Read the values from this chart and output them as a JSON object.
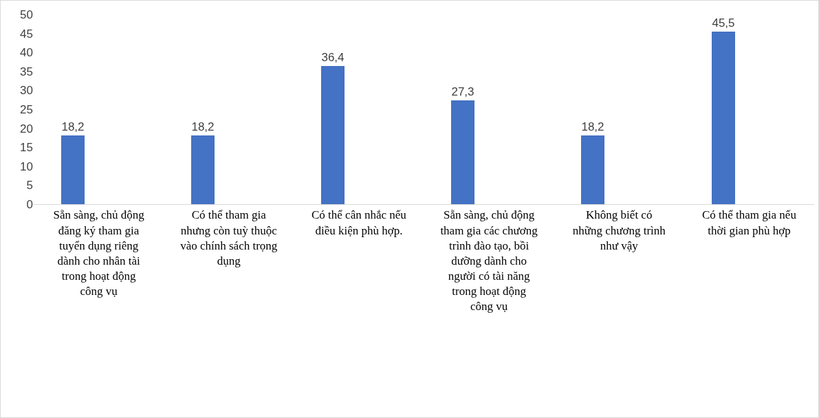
{
  "chart_data": {
    "type": "bar",
    "categories": [
      "Sẵn sàng, chủ động đăng ký tham gia tuyển dụng riêng dành cho nhân tài trong hoạt động công vụ",
      "Có thể tham gia nhưng còn tuỳ thuộc vào chính sách trọng dụng",
      "Có thể cân nhắc nếu điều kiện phù hợp.",
      "Sẵn sàng, chủ động tham gia các chương trình đào tạo, bồi dưỡng dành cho người có tài năng trong hoạt động công vụ",
      "Không biết có những chương trình như vậy",
      "Có thể tham gia nếu thời gian phù hợp"
    ],
    "values": [
      18.2,
      18.2,
      36.4,
      27.3,
      18.2,
      45.5
    ],
    "value_labels": [
      "18,2",
      "18,2",
      "36,4",
      "27,3",
      "18,2",
      "45,5"
    ],
    "color": "#4472c4",
    "ylim": [
      0,
      50
    ],
    "yticks": [
      0,
      5,
      10,
      15,
      20,
      25,
      30,
      35,
      40,
      45,
      50
    ],
    "grid": false
  }
}
